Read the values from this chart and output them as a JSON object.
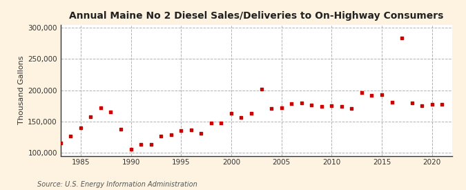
{
  "title": "Annual Maine No 2 Diesel Sales/Deliveries to On-Highway Consumers",
  "ylabel": "Thousand Gallons",
  "source": "Source: U.S. Energy Information Administration",
  "fig_background": "#fdf3e0",
  "plot_background": "#ffffff",
  "marker_color": "#cc0000",
  "years": [
    1983,
    1984,
    1985,
    1986,
    1987,
    1988,
    1989,
    1990,
    1991,
    1992,
    1993,
    1994,
    1995,
    1996,
    1997,
    1998,
    1999,
    2000,
    2001,
    2002,
    2003,
    2004,
    2005,
    2006,
    2007,
    2008,
    2009,
    2010,
    2011,
    2012,
    2013,
    2014,
    2015,
    2016,
    2017,
    2018,
    2019,
    2020,
    2021
  ],
  "values": [
    115000,
    126000,
    140000,
    158000,
    172000,
    165000,
    138000,
    106000,
    113000,
    113000,
    126000,
    129000,
    135000,
    136000,
    131000,
    148000,
    148000,
    163000,
    156000,
    163000,
    202000,
    171000,
    172000,
    179000,
    180000,
    176000,
    174000,
    175000,
    174000,
    171000,
    196000,
    192000,
    193000,
    181000,
    284000,
    180000,
    175000,
    178000,
    178000
  ],
  "xlim": [
    1983,
    2022
  ],
  "ylim": [
    95000,
    305000
  ],
  "yticks": [
    100000,
    150000,
    200000,
    250000,
    300000
  ],
  "xticks": [
    1985,
    1990,
    1995,
    2000,
    2005,
    2010,
    2015,
    2020
  ],
  "grid_color": "#aaaaaa",
  "spine_color": "#333333",
  "title_fontsize": 10,
  "tick_fontsize": 7.5,
  "ylabel_fontsize": 8,
  "source_fontsize": 7
}
